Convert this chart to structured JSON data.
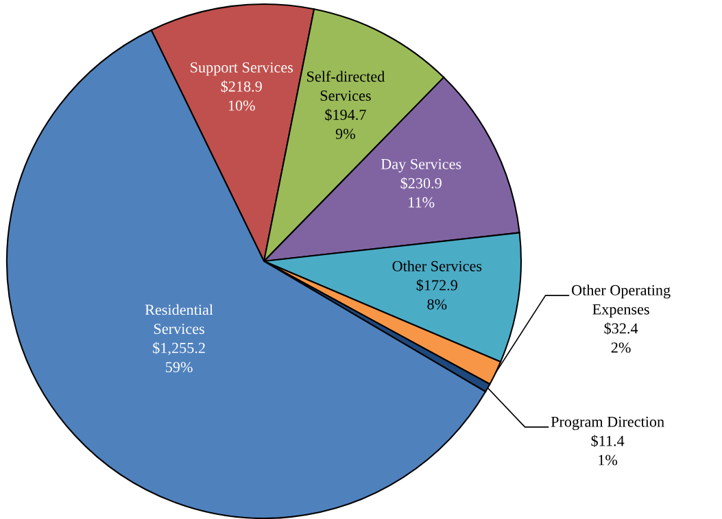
{
  "chart_data": {
    "type": "pie",
    "categories": [
      "Support Services",
      "Self-directed\nServices",
      "Day Services",
      "Other Services",
      "Other Operating\nExpenses",
      "Program Direction",
      "Residential\nServices"
    ],
    "values": [
      218.9,
      194.7,
      230.9,
      172.9,
      32.4,
      11.4,
      1255.2
    ],
    "value_labels": [
      "$218.9\n10%",
      "$194.7\n9%",
      "$230.9\n11%",
      "$172.9\n8%",
      "$32.4\n2%",
      "$11.4\n1%",
      "$1,255.2\n59%"
    ],
    "colors": [
      "#c0504d",
      "#9bbb59",
      "#8064a2",
      "#4bacc6",
      "#f79646",
      "#1f497d",
      "#4f81bd"
    ],
    "legend": false
  }
}
